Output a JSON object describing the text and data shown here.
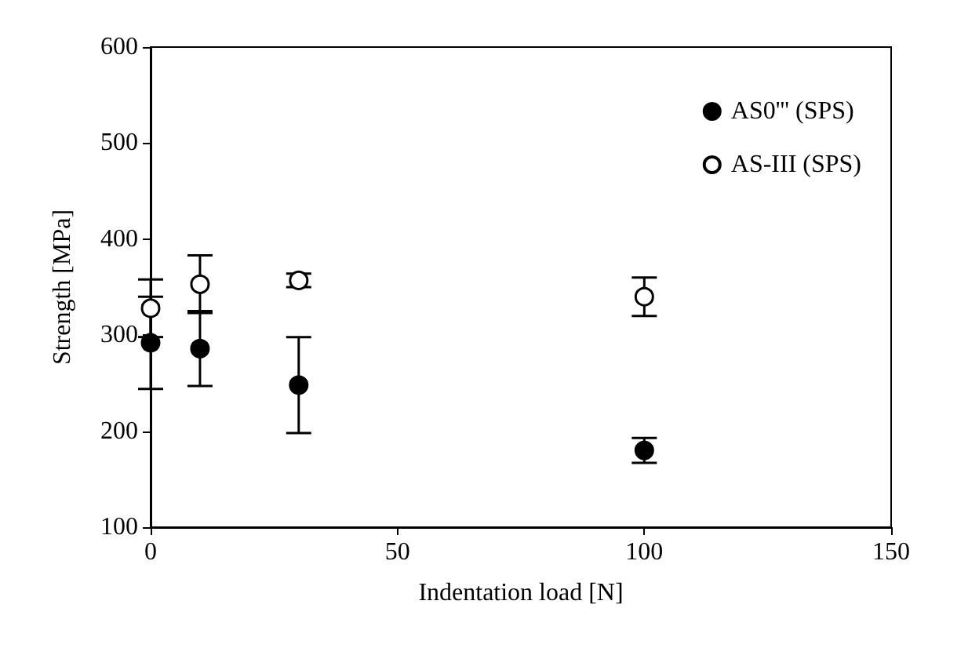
{
  "chart_data": {
    "type": "scatter",
    "xlabel": "Indentation load [N]",
    "ylabel": "Strength [MPa]",
    "xlim": [
      0,
      150
    ],
    "xticks": [
      0,
      50,
      100,
      150
    ],
    "ylim": [
      100,
      600
    ],
    "yticks": [
      100,
      200,
      300,
      400,
      500,
      600
    ],
    "grid": false,
    "legend": "top right",
    "marker": "circle",
    "series": [
      {
        "name": "AS0''' (SPS)",
        "color": "#000000",
        "x": [
          0,
          10,
          30,
          100
        ],
        "values": [
          292,
          286,
          248,
          180
        ],
        "errors": [
          48,
          39,
          50,
          13
        ]
      },
      {
        "name": "AS-III (SPS)",
        "color": "#ffffff",
        "x": [
          0,
          10,
          30,
          100
        ],
        "values": [
          328,
          353,
          357,
          340
        ],
        "errors": [
          30,
          30,
          7,
          20
        ]
      }
    ]
  }
}
